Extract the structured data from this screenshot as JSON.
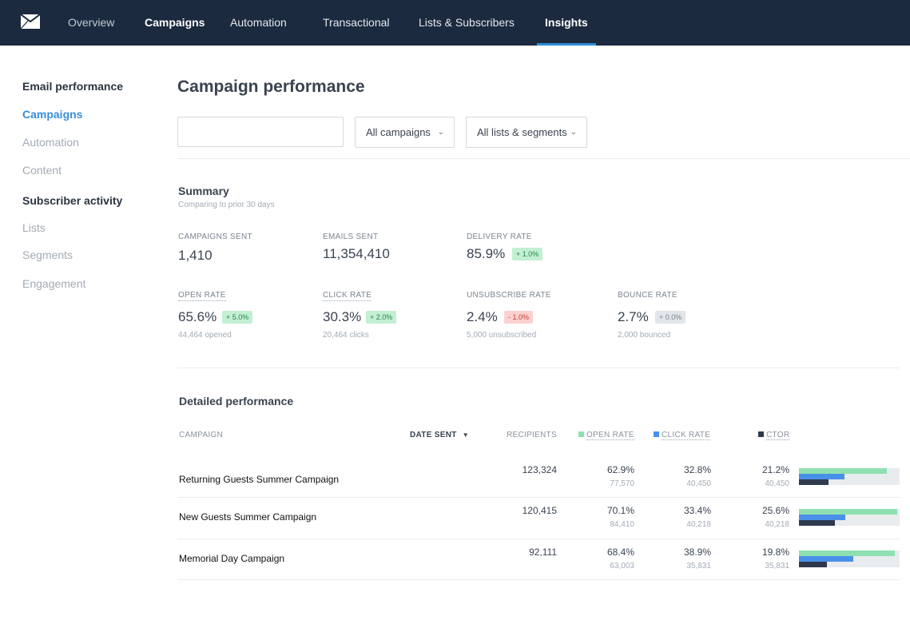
{
  "nav": {
    "items": [
      {
        "label": "Overview"
      },
      {
        "label": "Campaigns"
      },
      {
        "label": "Automation"
      },
      {
        "label": "Transactional"
      },
      {
        "label": "Lists & Subscribers"
      },
      {
        "label": "Insights"
      }
    ],
    "active": "Insights"
  },
  "sidebar": {
    "email_heading": "Email performance",
    "email_items": [
      {
        "label": "Campaigns",
        "active": true
      },
      {
        "label": "Automation"
      },
      {
        "label": "Content"
      }
    ],
    "subscriber_heading": "Subscriber activity",
    "subscriber_items": [
      {
        "label": "Lists"
      },
      {
        "label": "Segments"
      },
      {
        "label": "Engagement"
      }
    ]
  },
  "main": {
    "title": "Campaign performance",
    "search": {
      "value": "",
      "placeholder": ""
    },
    "filters": [
      {
        "label": "All campaigns"
      },
      {
        "label": "All lists & segments"
      }
    ]
  },
  "summary": {
    "title": "Summary",
    "subtitle": "Comparing to prior 30 days",
    "metrics": [
      {
        "label": "CAMPAIGNS SENT",
        "value": "1,410"
      },
      {
        "label": "EMAILS SENT",
        "value": "11,354,410"
      },
      {
        "label": "DELIVERY RATE",
        "value": "85.9%",
        "change": "+ 1.0%"
      },
      {
        "label": "OPEN RATE",
        "value": "65.6%",
        "change": "+ 5.0%",
        "sub": "44,464 opened"
      },
      {
        "label": "CLICK RATE",
        "value": "30.3%",
        "change": "+ 2.0%",
        "sub": "20,464 clicks"
      },
      {
        "label": "UNSUBSCRIBE RATE",
        "value": "2.4%",
        "change": "- 1.0%",
        "sub": "5,000 unsubscribed"
      },
      {
        "label": "BOUNCE RATE",
        "value": "2.7%",
        "change": "+ 0.0%",
        "sub": "2,000 bounced"
      }
    ]
  },
  "detailed": {
    "title": "Detailed performance",
    "columns": {
      "campaign": "CAMPAIGN",
      "date_sent": "DATE SENT",
      "recipients": "RECIPIENTS",
      "open_rate": "OPEN RATE",
      "click_rate": "CLICK RATE",
      "ctor": "CTOR"
    },
    "colors": {
      "open": "#8fe0b0",
      "click": "#4a90e8",
      "ctor": "#2f3a4f"
    },
    "rows": [
      {
        "name": "Returning Guests Summer Campaign",
        "recipients": "123,324",
        "open_rate": "62.9%",
        "open_count": "77,570",
        "click_rate": "32.8%",
        "click_count": "40,450",
        "ctor": "21.2%",
        "ctor_count": "40,450",
        "open_value": 62.9,
        "click_value": 32.8,
        "ctor_value": 21.2
      },
      {
        "name": "New Guests Summer Campaign",
        "recipients": "120,415",
        "open_rate": "70.1%",
        "open_count": "84,410",
        "click_rate": "33.4%",
        "click_count": "40,218",
        "ctor": "25.6%",
        "ctor_count": "40,218",
        "open_value": 70.1,
        "click_value": 33.4,
        "ctor_value": 25.6
      },
      {
        "name": "Memorial Day Campaign",
        "recipients": "92,111",
        "open_rate": "68.4%",
        "open_count": "63,003",
        "click_rate": "38.9%",
        "click_count": "35,831",
        "ctor": "19.8%",
        "ctor_count": "35,831",
        "open_value": 68.4,
        "click_value": 38.9,
        "ctor_value": 19.8
      }
    ]
  }
}
